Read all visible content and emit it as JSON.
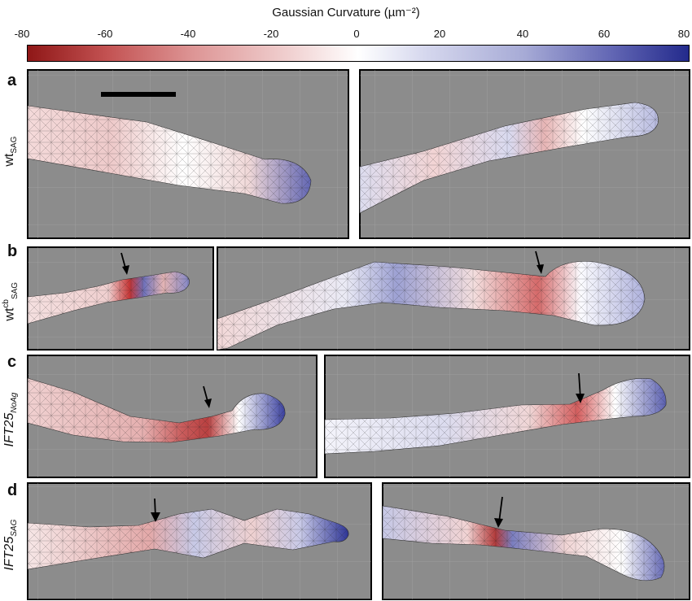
{
  "colorbar": {
    "title": "Gaussian Curvature (µm⁻²)",
    "ticks": [
      "-80",
      "-60",
      "-40",
      "-20",
      "0",
      "20",
      "40",
      "60",
      "80"
    ],
    "colors": {
      "min": "#8f1717",
      "zero": "#ffffff",
      "max": "#232a8c"
    }
  },
  "panels_bg": "#8c8c8c",
  "rows": [
    {
      "letter": "a",
      "label_main": "wt",
      "label_sub": "SAG",
      "label_sup": "",
      "italic": false
    },
    {
      "letter": "b",
      "label_main": "wt",
      "label_sub": "SAG",
      "label_sup": "cb",
      "italic": false
    },
    {
      "letter": "c",
      "label_main": "IFT25",
      "label_sub": "NoAg",
      "label_sup": "",
      "italic": true
    },
    {
      "letter": "d",
      "label_main": "IFT25",
      "label_sub": "SAG",
      "label_sup": "",
      "italic": true
    }
  ],
  "annotations": {
    "scale_bar": "scale-bar",
    "arrow_icon": "down-arrow-icon"
  }
}
